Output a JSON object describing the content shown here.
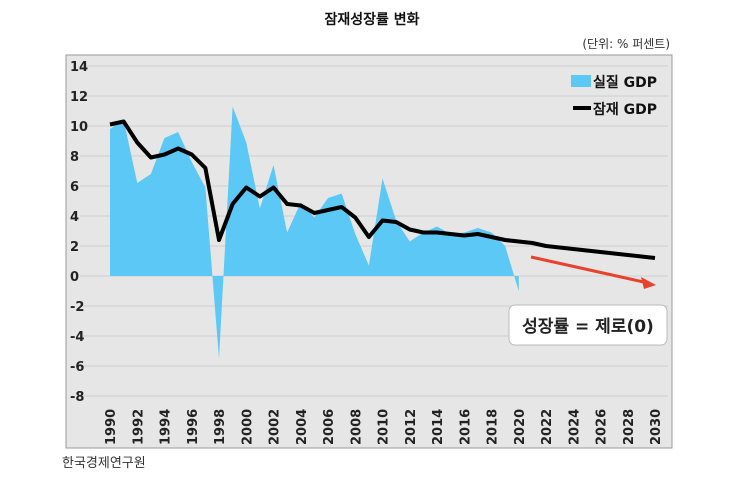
{
  "chart_data": {
    "type": "area+line",
    "title": "잠재성장률 변화",
    "unit_note": "(단위: % 퍼센트)",
    "source": "한국경제연구원",
    "ylim": [
      -8,
      14
    ],
    "yticks": [
      14,
      12,
      10,
      8,
      6,
      4,
      2,
      0,
      -2,
      -4,
      -6,
      -8
    ],
    "xlim": [
      1990,
      2030
    ],
    "xticks": [
      1990,
      1992,
      1994,
      1996,
      1998,
      2000,
      2002,
      2004,
      2006,
      2008,
      2010,
      2012,
      2014,
      2016,
      2018,
      2020,
      2022,
      2024,
      2026,
      2028,
      2030
    ],
    "grid": true,
    "legend_position": "top-right",
    "series": [
      {
        "name": "실질 GDP",
        "type": "area",
        "color": "#5bc8f5",
        "x": [
          1990,
          1991,
          1992,
          1993,
          1994,
          1995,
          1996,
          1997,
          1998,
          1999,
          2000,
          2001,
          2002,
          2003,
          2004,
          2005,
          2006,
          2007,
          2008,
          2009,
          2010,
          2011,
          2012,
          2013,
          2014,
          2015,
          2016,
          2017,
          2018,
          2019,
          2020
        ],
        "values": [
          9.8,
          10.4,
          6.2,
          6.8,
          9.2,
          9.6,
          7.6,
          5.9,
          -5.5,
          11.3,
          8.9,
          4.5,
          7.4,
          2.9,
          4.9,
          3.9,
          5.2,
          5.5,
          2.8,
          0.7,
          6.5,
          3.7,
          2.3,
          2.9,
          3.3,
          2.8,
          2.9,
          3.2,
          2.9,
          2.0,
          -1.0
        ]
      },
      {
        "name": "잠재 GDP",
        "type": "line",
        "color": "#000000",
        "x": [
          1990,
          1991,
          1992,
          1993,
          1994,
          1995,
          1996,
          1997,
          1998,
          1999,
          2000,
          2001,
          2002,
          2003,
          2004,
          2005,
          2006,
          2007,
          2008,
          2009,
          2010,
          2011,
          2012,
          2013,
          2014,
          2015,
          2016,
          2017,
          2018,
          2019,
          2020,
          2021,
          2022,
          2023,
          2024,
          2025,
          2026,
          2027,
          2028,
          2029,
          2030
        ],
        "values": [
          10.1,
          10.3,
          8.9,
          7.9,
          8.1,
          8.5,
          8.1,
          7.2,
          2.4,
          4.8,
          5.9,
          5.3,
          5.9,
          4.8,
          4.7,
          4.2,
          4.4,
          4.6,
          3.9,
          2.6,
          3.7,
          3.6,
          3.1,
          2.9,
          2.9,
          2.8,
          2.7,
          2.8,
          2.6,
          2.4,
          2.3,
          2.2,
          2.0,
          1.9,
          1.8,
          1.7,
          1.6,
          1.5,
          1.4,
          1.3,
          1.2
        ]
      }
    ],
    "annotations": [
      {
        "text": "성장률 = 제로(0)",
        "arrow_color": "#e8412c"
      }
    ]
  }
}
